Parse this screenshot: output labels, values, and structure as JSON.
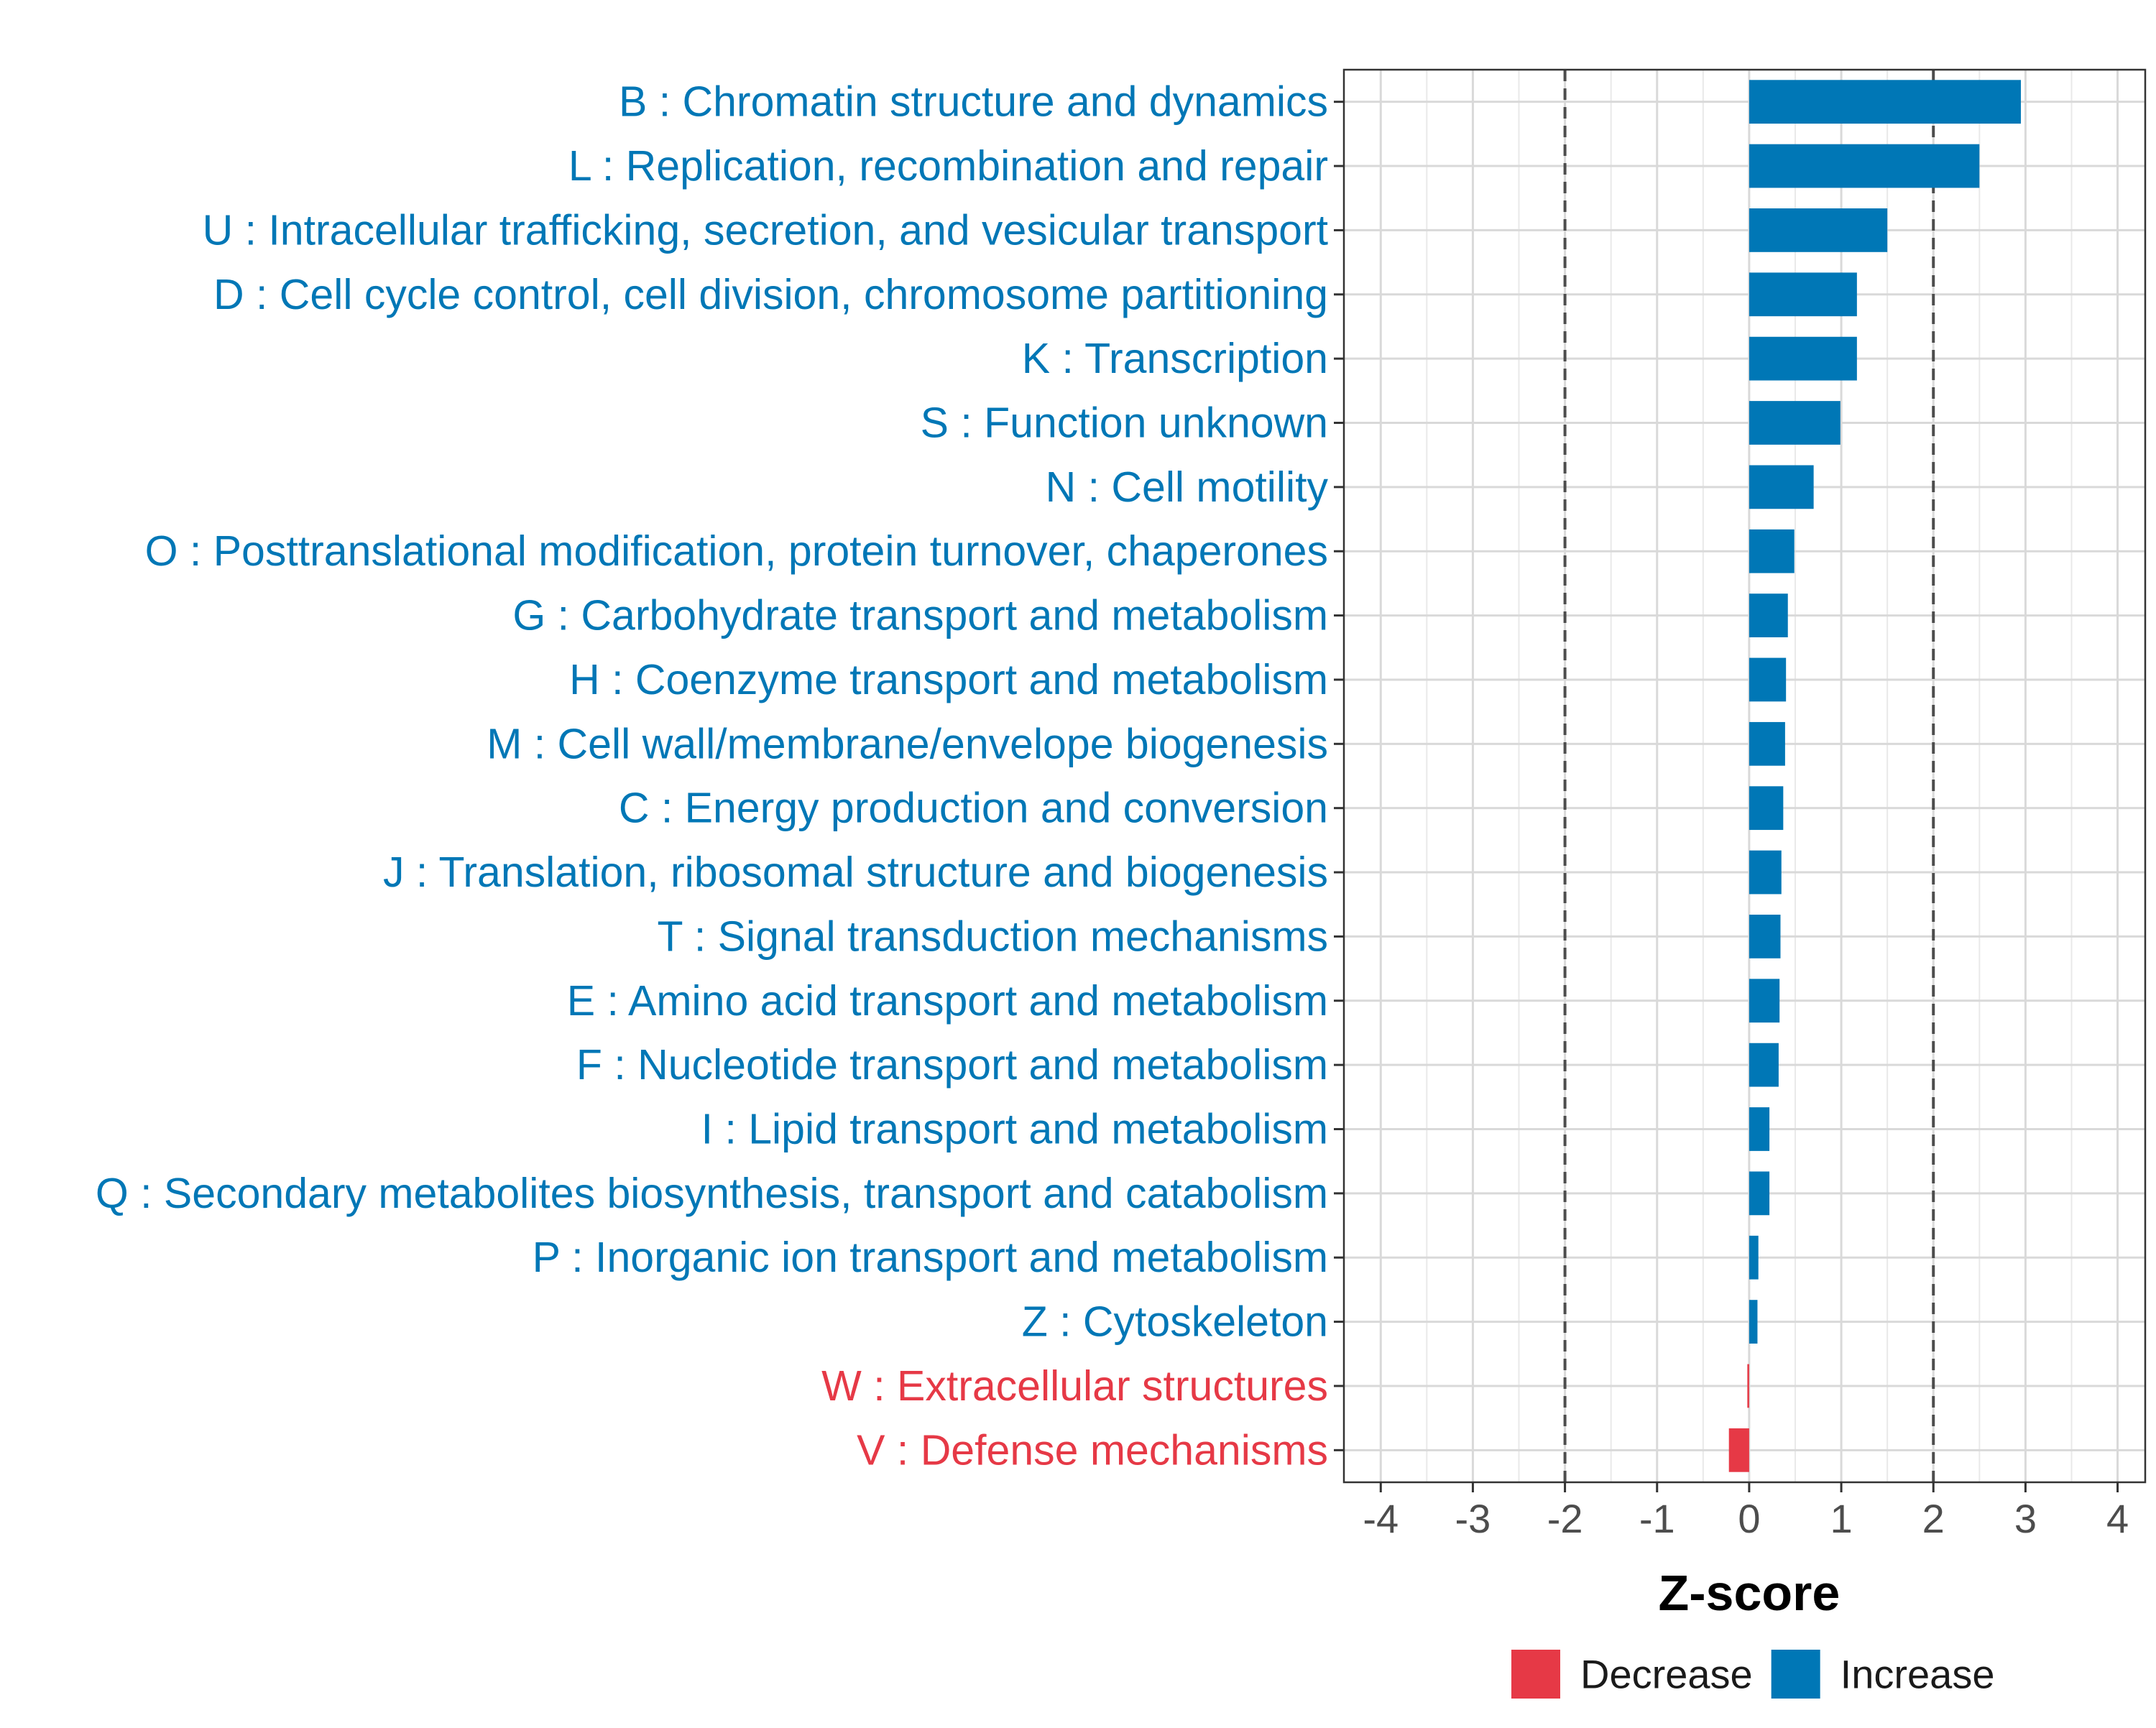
{
  "chart_data": {
    "type": "bar",
    "orientation": "horizontal",
    "title": "",
    "xlabel": "Z-score",
    "ylabel": "",
    "xlim": [
      -4.4,
      4.3
    ],
    "xticks": [
      -4,
      -3,
      -2,
      -1,
      0,
      1,
      2,
      3,
      4
    ],
    "xtick_labels": [
      "-4",
      "-3",
      "-2",
      "-1",
      "0",
      "1",
      "2",
      "3",
      "4"
    ],
    "reference_lines": [
      -2,
      2
    ],
    "grid": true,
    "colors": {
      "Decrease": "#e63946",
      "Increase": "#0077b6"
    },
    "categories": [
      "B : Chromatin structure and dynamics",
      "L : Replication, recombination and repair",
      "U : Intracellular trafficking, secretion, and vesicular transport",
      "D : Cell cycle control, cell division, chromosome partitioning",
      "K : Transcription",
      "S : Function unknown",
      "N : Cell motility",
      "O : Posttranslational modification, protein turnover, chaperones",
      "G : Carbohydrate transport and metabolism",
      "H : Coenzyme transport and metabolism",
      "M : Cell wall/membrane/envelope biogenesis",
      "C : Energy production and conversion",
      "J : Translation, ribosomal structure and biogenesis",
      "T : Signal transduction mechanisms",
      "E : Amino acid transport and metabolism",
      "F : Nucleotide transport and metabolism",
      "I : Lipid transport and metabolism",
      "Q : Secondary metabolites biosynthesis, transport and catabolism",
      "P : Inorganic ion transport and metabolism",
      "Z : Cytoskeleton",
      "W : Extracellular structures",
      "V : Defense mechanisms"
    ],
    "values": [
      2.95,
      2.5,
      1.5,
      1.17,
      1.17,
      0.99,
      0.7,
      0.49,
      0.42,
      0.4,
      0.39,
      0.37,
      0.35,
      0.34,
      0.33,
      0.32,
      0.22,
      0.22,
      0.1,
      0.09,
      -0.02,
      -0.22
    ],
    "groups": [
      "Increase",
      "Increase",
      "Increase",
      "Increase",
      "Increase",
      "Increase",
      "Increase",
      "Increase",
      "Increase",
      "Increase",
      "Increase",
      "Increase",
      "Increase",
      "Increase",
      "Increase",
      "Increase",
      "Increase",
      "Increase",
      "Increase",
      "Increase",
      "Decrease",
      "Decrease"
    ],
    "legend": {
      "position": "bottom",
      "entries": [
        {
          "label": "Decrease"
        },
        {
          "label": "Increase"
        }
      ]
    }
  }
}
